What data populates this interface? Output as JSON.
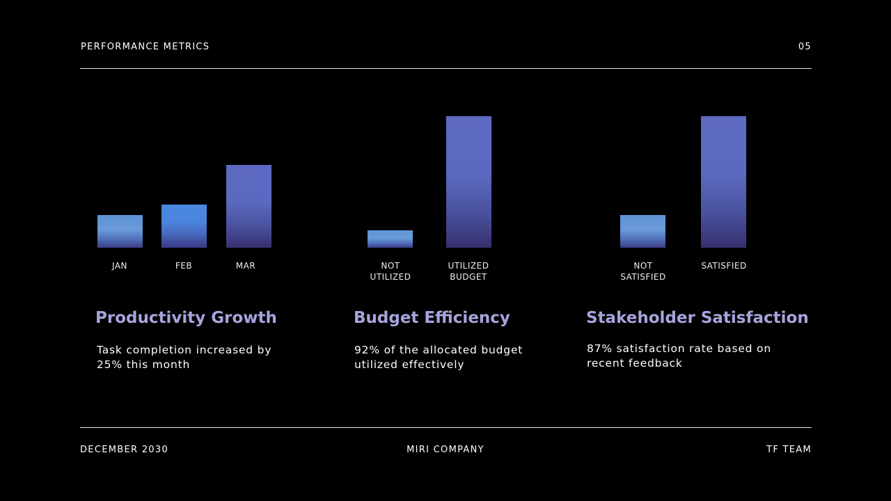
{
  "header": {
    "title": "PERFORMANCE METRICS",
    "page_number": "05"
  },
  "footer": {
    "date": "DECEMBER 2030",
    "company": "MIRI COMPANY",
    "team": "TF TEAM"
  },
  "colors": {
    "background": "#000000",
    "title": "#a7a4dd",
    "bar_light": "#6a9bd8",
    "bar_blue": "#4a87e0",
    "bar_purple": "#5e6ac2"
  },
  "chart_data": [
    {
      "type": "bar",
      "categories": [
        "JAN",
        "FEB",
        "MAR"
      ],
      "values": [
        25,
        33,
        63
      ],
      "title": "Productivity Growth",
      "description": "Task completion increased by 25% this month"
    },
    {
      "type": "bar",
      "categories": [
        "NOT\nUTILIZED",
        "UTILIZED\nBUDGET"
      ],
      "values": [
        13,
        100
      ],
      "title": "Budget Efficiency",
      "description": "92% of the allocated budget utilized effectively"
    },
    {
      "type": "bar",
      "categories": [
        "NOT\nSATISFIED",
        "SATISFIED"
      ],
      "values": [
        25,
        100
      ],
      "title": "Stakeholder Satisfaction",
      "description": "87% satisfaction rate based on recent feedback"
    }
  ]
}
